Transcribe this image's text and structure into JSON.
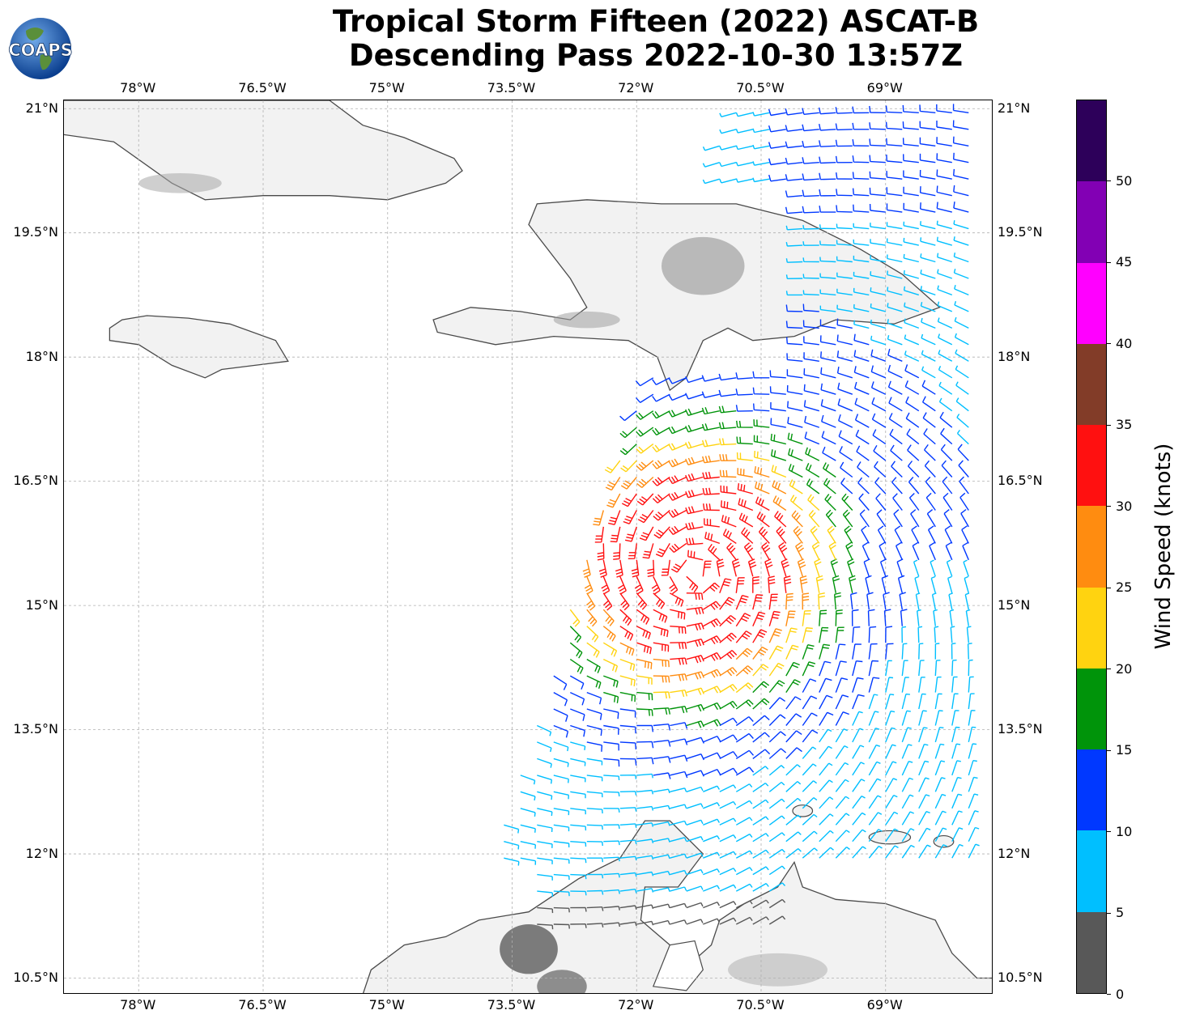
{
  "title": {
    "line1": "Tropical Storm Fifteen (2022) ASCAT-B",
    "line2": "Descending Pass 2022-10-30 13:57Z"
  },
  "logo": {
    "text": "COAPS"
  },
  "axes": {
    "lon_labels": [
      "78°W",
      "76.5°W",
      "75°W",
      "73.5°W",
      "72°W",
      "70.5°W",
      "69°W"
    ],
    "lat_labels": [
      "21°N",
      "19.5°N",
      "18°N",
      "16.5°N",
      "15°N",
      "13.5°N",
      "12°N",
      "10.5°N"
    ],
    "lon_range": [
      -78.9,
      -67.7
    ],
    "lat_range": [
      10.3,
      21.1
    ]
  },
  "colorbar": {
    "title": "Wind Speed (knots)",
    "tick_labels": [
      "0",
      "5",
      "10",
      "15",
      "20",
      "25",
      "30",
      "35",
      "40",
      "45",
      "50"
    ],
    "bins": [
      {
        "min": 0,
        "max": 5,
        "color": "#585858"
      },
      {
        "min": 5,
        "max": 10,
        "color": "#00bfff"
      },
      {
        "min": 10,
        "max": 15,
        "color": "#0038ff"
      },
      {
        "min": 15,
        "max": 20,
        "color": "#00940a"
      },
      {
        "min": 20,
        "max": 25,
        "color": "#ffd310"
      },
      {
        "min": 25,
        "max": 30,
        "color": "#ff8c10"
      },
      {
        "min": 30,
        "max": 35,
        "color": "#ff1010"
      },
      {
        "min": 35,
        "max": 40,
        "color": "#823c28"
      },
      {
        "min": 40,
        "max": 45,
        "color": "#ff00ff"
      },
      {
        "min": 45,
        "max": 50,
        "color": "#8200b4"
      },
      {
        "min": 50,
        "max": 55,
        "color": "#2d005a"
      }
    ]
  },
  "colors": {
    "land": "#f2f2f2",
    "coastline": "#4a4a4a",
    "grid": "#b0b0b0"
  },
  "storm_center": {
    "lon": -71.3,
    "lat": 15.4
  }
}
